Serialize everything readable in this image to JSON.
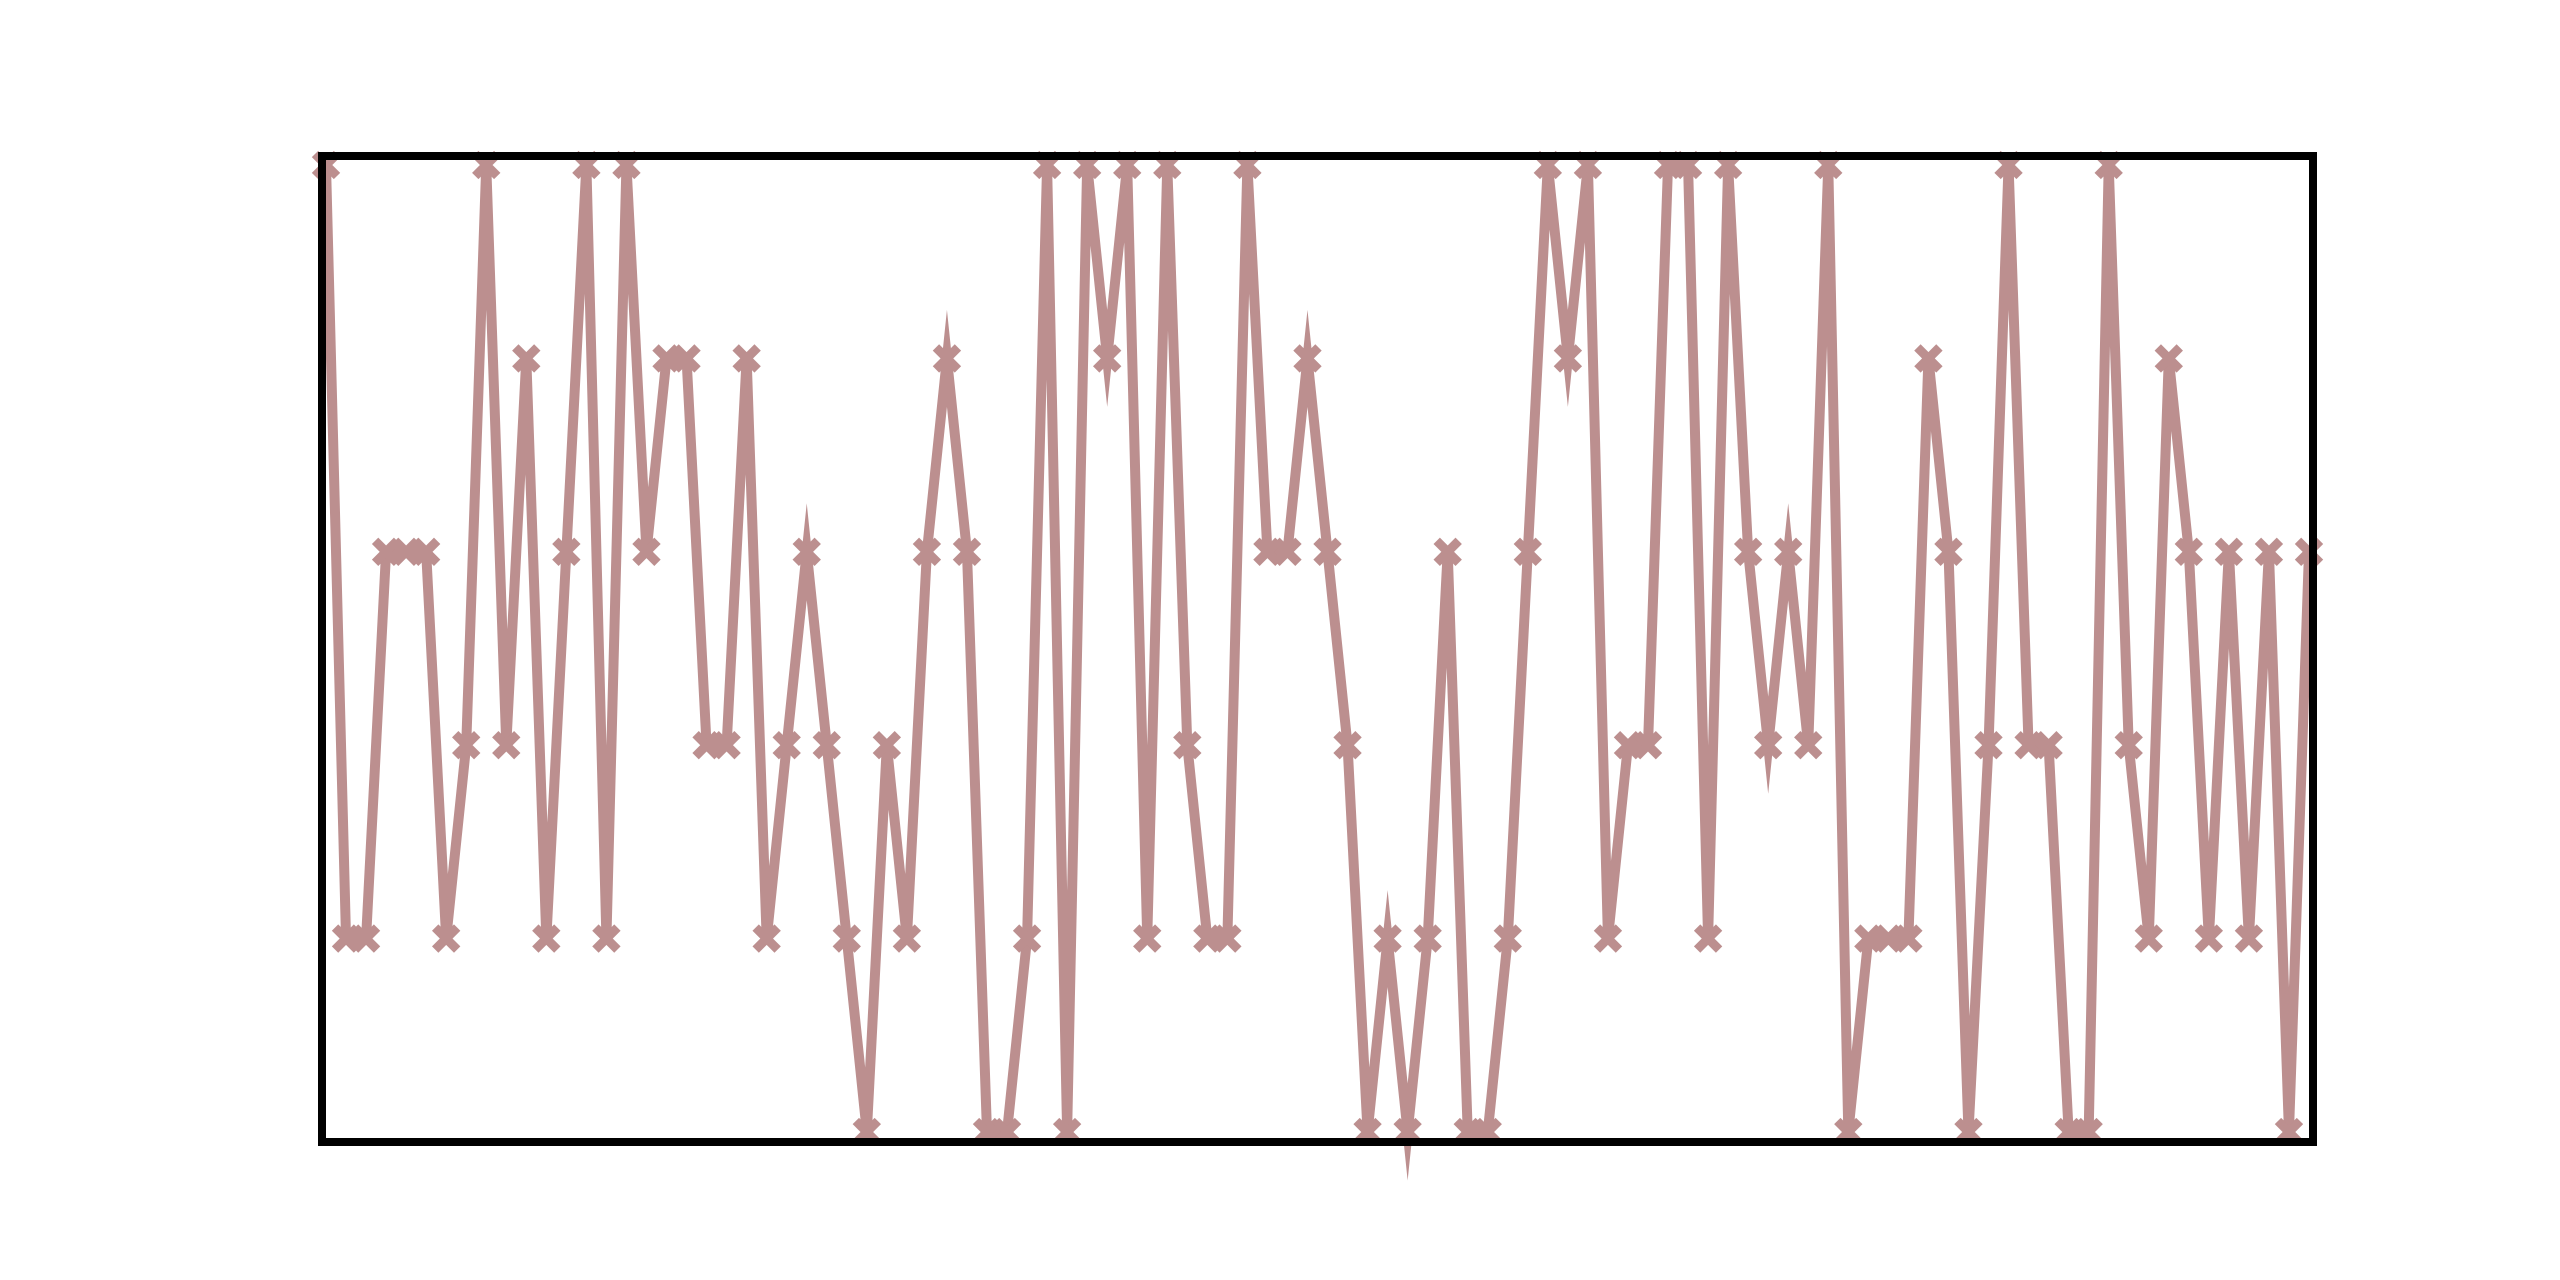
{
  "chart_data": {
    "type": "line",
    "x": [
      0,
      1,
      2,
      3,
      4,
      5,
      6,
      7,
      8,
      9,
      10,
      11,
      12,
      13,
      14,
      15,
      16,
      17,
      18,
      19,
      20,
      21,
      22,
      23,
      24,
      25,
      26,
      27,
      28,
      29,
      30,
      31,
      32,
      33,
      34,
      35,
      36,
      37,
      38,
      39,
      40,
      41,
      42,
      43,
      44,
      45,
      46,
      47,
      48,
      49,
      50,
      51,
      52,
      53,
      54,
      55,
      56,
      57,
      58,
      59,
      60,
      61,
      62,
      63,
      64,
      65,
      66,
      67,
      68,
      69,
      70,
      71,
      72,
      73,
      74,
      75,
      76,
      77,
      78,
      79,
      80,
      81,
      82,
      83,
      84,
      85,
      86,
      87,
      88,
      89,
      90,
      91,
      92,
      93,
      94,
      95,
      96,
      97,
      98,
      99
    ],
    "series": [
      {
        "values": [
          5,
          1,
          1,
          3,
          3,
          3,
          1,
          2,
          5,
          2,
          4,
          1,
          3,
          5,
          1,
          5,
          3,
          4,
          4,
          2,
          2,
          4,
          1,
          2,
          3,
          2,
          1,
          0,
          2,
          1,
          3,
          4,
          3,
          0,
          0,
          1,
          5,
          0,
          5,
          4,
          5,
          1,
          5,
          2,
          1,
          1,
          5,
          3,
          3,
          4,
          3,
          2,
          0,
          1,
          0,
          1,
          3,
          0,
          0,
          1,
          3,
          5,
          4,
          5,
          1,
          2,
          2,
          5,
          5,
          1,
          5,
          3,
          2,
          3,
          2,
          5,
          0,
          1,
          1,
          1,
          4,
          3,
          0,
          2,
          5,
          2,
          2,
          0,
          0,
          5,
          2,
          1,
          4,
          3,
          1,
          3,
          1,
          3,
          0,
          3
        ],
        "color": "#bc8f8f"
      }
    ],
    "xlim": [
      0,
      99
    ],
    "ylim": [
      0,
      5
    ],
    "grid": false,
    "legend": "none",
    "title": "",
    "xlabel": "",
    "ylabel": "",
    "marker": "X"
  }
}
